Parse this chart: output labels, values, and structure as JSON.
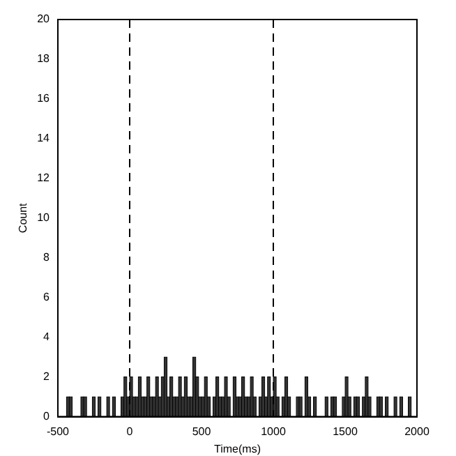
{
  "chart_data": {
    "type": "histogram",
    "xlabel": "Time(ms)",
    "ylabel": "Count",
    "color": "#333333",
    "bins": [
      -500,
      -480,
      -460,
      -440,
      -420,
      -400,
      -380,
      -360,
      -340,
      -320,
      -300,
      -280,
      -260,
      -240,
      -220,
      -200,
      -180,
      -160,
      -140,
      -120,
      -100,
      -80,
      -60,
      -40,
      -20,
      0,
      20,
      40,
      60,
      80,
      100,
      120,
      140,
      160,
      180,
      200,
      220,
      240,
      260,
      280,
      300,
      320,
      340,
      360,
      380,
      400,
      420,
      440,
      460,
      480,
      500,
      520,
      540,
      560,
      580,
      600,
      620,
      640,
      660,
      680,
      700,
      720,
      740,
      760,
      780,
      800,
      820,
      840,
      860,
      880,
      900,
      920,
      940,
      960,
      980,
      1000,
      1020,
      1040,
      1060,
      1080,
      1100,
      1120,
      1140,
      1160,
      1180,
      1200,
      1220,
      1240,
      1260,
      1280,
      1300,
      1320,
      1340,
      1360,
      1380,
      1400,
      1420,
      1440,
      1460,
      1480,
      1500,
      1520,
      1540,
      1560,
      1580,
      1600,
      1620,
      1640,
      1660,
      1680,
      1700,
      1720,
      1740,
      1760,
      1780,
      1800,
      1820,
      1840,
      1860,
      1880,
      1900,
      1920,
      1940,
      1960,
      1980,
      2000
    ],
    "values": [
      0,
      0,
      0,
      1,
      1,
      0,
      0,
      0,
      1,
      1,
      0,
      0,
      1,
      0,
      1,
      0,
      0,
      1,
      0,
      1,
      0,
      0,
      1,
      2,
      1,
      2,
      1,
      1,
      2,
      1,
      1,
      2,
      1,
      1,
      2,
      1,
      2,
      3,
      1,
      2,
      1,
      1,
      2,
      1,
      2,
      1,
      1,
      3,
      2,
      1,
      1,
      2,
      1,
      0,
      1,
      2,
      1,
      1,
      2,
      1,
      0,
      2,
      1,
      1,
      2,
      1,
      1,
      2,
      1,
      0,
      1,
      2,
      1,
      2,
      1,
      2,
      1,
      0,
      1,
      2,
      1,
      0,
      0,
      1,
      1,
      0,
      2,
      1,
      0,
      1,
      0,
      0,
      0,
      1,
      0,
      1,
      1,
      0,
      0,
      1,
      2,
      1,
      0,
      1,
      1,
      0,
      1,
      2,
      1,
      0,
      0,
      1,
      1,
      0,
      1,
      0,
      0,
      1,
      0,
      1,
      0,
      0,
      1,
      0,
      0
    ],
    "xlim": [
      -500,
      2000
    ],
    "xticks": [
      -500,
      0,
      500,
      1000,
      1500,
      2000
    ],
    "ylim": [
      0,
      20
    ],
    "yticks": [
      0,
      2,
      4,
      6,
      8,
      10,
      12,
      14,
      16,
      18,
      20
    ],
    "ref_lines": [
      {
        "axis": "x",
        "value": 0,
        "color": "#000000",
        "line_style": "dashed"
      },
      {
        "axis": "x",
        "value": 1000,
        "color": "#000000",
        "line_style": "dashed"
      }
    ]
  }
}
